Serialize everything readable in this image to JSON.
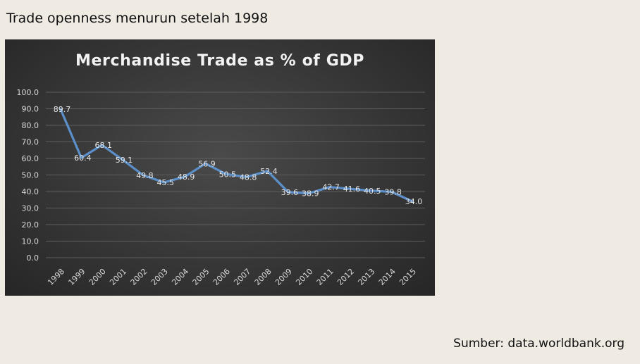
{
  "heading": "Trade openness menurun setelah 1998",
  "source": "Sumber: data.worldbank.org",
  "chart_data": {
    "type": "line",
    "title": "Merchandise Trade as % of GDP",
    "xlabel": "",
    "ylabel": "",
    "categories": [
      "1998",
      "1999",
      "2000",
      "2001",
      "2002",
      "2003",
      "2004",
      "2005",
      "2006",
      "2007",
      "2008",
      "2009",
      "2010",
      "2011",
      "2012",
      "2013",
      "2014",
      "2015"
    ],
    "series": [
      {
        "values": [
          89.7,
          60.4,
          68.1,
          59.1,
          49.8,
          45.5,
          48.9,
          56.9,
          50.5,
          48.8,
          52.4,
          39.6,
          38.9,
          42.7,
          41.6,
          40.5,
          39.8,
          34.0
        ],
        "labels": [
          "89.7",
          "60.4",
          "68.1",
          "59.1",
          "49.8",
          "45.5",
          "48.9",
          "56.9",
          "50.5",
          "48.8",
          "52.4",
          "39.6",
          "38.9",
          "42.7",
          "41.6",
          "40.5",
          "39.8",
          "34.0"
        ]
      }
    ],
    "ylim": [
      0,
      100
    ],
    "yticks": [
      "0.0",
      "10.0",
      "20.0",
      "30.0",
      "40.0",
      "50.0",
      "60.0",
      "70.0",
      "80.0",
      "90.0",
      "100.0"
    ],
    "grid": true,
    "colors": {
      "line": "#5b8fc9",
      "grid": "#5e5e5e",
      "text": "#d9d9d9"
    }
  }
}
